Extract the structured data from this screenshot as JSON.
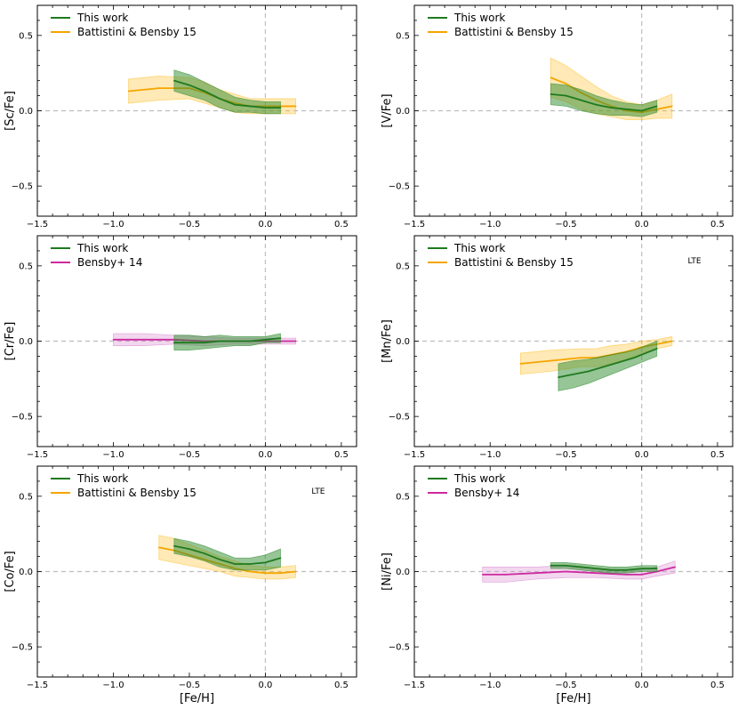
{
  "colors": {
    "this_work": "#1f7a1f",
    "this_work_fill": "#2e8b2e",
    "battistini": "#f5a500",
    "battistini_fill": "#ffc02e",
    "bensby": "#cc2a9e",
    "bensby_fill": "#d98bd0",
    "refline": "#bdbdbd"
  },
  "chart_data": [
    {
      "type": "line",
      "ylabel": "[Sc/Fe]",
      "xlabel": "",
      "xlim": [
        -1.5,
        0.6
      ],
      "ylim": [
        -0.7,
        0.7
      ],
      "xticks": [
        -1.5,
        -1.0,
        -0.5,
        0.0,
        0.5
      ],
      "xtick_labels": [
        "−1.5",
        "−1.0",
        "−0.5",
        "0.0",
        "0.5"
      ],
      "yticks": [
        -0.5,
        0.0,
        0.5
      ],
      "ytick_labels": [
        "−0.5",
        "0.0",
        "0.5"
      ],
      "legend_position": "top-left",
      "note": "",
      "series": [
        {
          "name": "This work",
          "color_key": "this_work",
          "x": [
            -0.6,
            -0.5,
            -0.4,
            -0.3,
            -0.2,
            -0.1,
            0.0,
            0.1
          ],
          "y": [
            0.2,
            0.17,
            0.13,
            0.08,
            0.04,
            0.03,
            0.02,
            0.02
          ],
          "err": [
            0.07,
            0.07,
            0.06,
            0.06,
            0.05,
            0.04,
            0.04,
            0.04
          ]
        },
        {
          "name": "Battistini & Bensby 15",
          "color_key": "battistini",
          "x": [
            -0.9,
            -0.7,
            -0.5,
            -0.4,
            -0.3,
            -0.2,
            -0.1,
            0.0,
            0.1,
            0.2
          ],
          "y": [
            0.13,
            0.15,
            0.15,
            0.12,
            0.08,
            0.05,
            0.03,
            0.03,
            0.03,
            0.03
          ],
          "err": [
            0.08,
            0.08,
            0.07,
            0.07,
            0.06,
            0.06,
            0.05,
            0.05,
            0.05,
            0.05
          ]
        }
      ]
    },
    {
      "type": "line",
      "ylabel": "[V/Fe]",
      "xlabel": "",
      "xlim": [
        -1.5,
        0.6
      ],
      "ylim": [
        -0.7,
        0.7
      ],
      "xticks": [
        -1.5,
        -1.0,
        -0.5,
        0.0,
        0.5
      ],
      "xtick_labels": [
        "−1.5",
        "−1.0",
        "−0.5",
        "0.0",
        "0.5"
      ],
      "yticks": [
        -0.5,
        0.0,
        0.5
      ],
      "ytick_labels": [
        "−0.5",
        "0.0",
        "0.5"
      ],
      "legend_position": "top-left",
      "note": "",
      "series": [
        {
          "name": "This work",
          "color_key": "this_work",
          "x": [
            -0.6,
            -0.5,
            -0.4,
            -0.3,
            -0.2,
            -0.1,
            0.0,
            0.1
          ],
          "y": [
            0.11,
            0.1,
            0.07,
            0.04,
            0.02,
            0.01,
            0.0,
            0.03
          ],
          "err": [
            0.07,
            0.07,
            0.07,
            0.06,
            0.05,
            0.04,
            0.04,
            0.04
          ]
        },
        {
          "name": "Battistini & Bensby 15",
          "color_key": "battistini",
          "x": [
            -0.6,
            -0.5,
            -0.4,
            -0.3,
            -0.2,
            -0.1,
            0.0,
            0.1,
            0.2
          ],
          "y": [
            0.22,
            0.18,
            0.12,
            0.07,
            0.03,
            0.0,
            -0.01,
            0.01,
            0.03
          ],
          "err": [
            0.13,
            0.12,
            0.11,
            0.09,
            0.07,
            0.06,
            0.05,
            0.06,
            0.08
          ]
        }
      ]
    },
    {
      "type": "line",
      "ylabel": "[Cr/Fe]",
      "xlabel": "",
      "xlim": [
        -1.5,
        0.6
      ],
      "ylim": [
        -0.7,
        0.7
      ],
      "xticks": [
        -1.5,
        -1.0,
        -0.5,
        0.0,
        0.5
      ],
      "xtick_labels": [
        "−1.5",
        "−1.0",
        "−0.5",
        "0.0",
        "0.5"
      ],
      "yticks": [
        -0.5,
        0.0,
        0.5
      ],
      "ytick_labels": [
        "−0.5",
        "0.0",
        "0.5"
      ],
      "legend_position": "top-left",
      "note": "",
      "series": [
        {
          "name": "This work",
          "color_key": "this_work",
          "x": [
            -0.6,
            -0.5,
            -0.4,
            -0.3,
            -0.2,
            -0.1,
            0.0,
            0.1
          ],
          "y": [
            -0.01,
            -0.01,
            -0.01,
            0.0,
            0.0,
            0.0,
            0.01,
            0.02
          ],
          "err": [
            0.05,
            0.05,
            0.04,
            0.04,
            0.03,
            0.03,
            0.02,
            0.03
          ]
        },
        {
          "name": "Bensby+ 14",
          "color_key": "bensby",
          "x": [
            -1.0,
            -0.8,
            -0.6,
            -0.4,
            -0.2,
            0.0,
            0.2
          ],
          "y": [
            0.01,
            0.01,
            0.01,
            0.0,
            0.0,
            0.0,
            0.0
          ],
          "err": [
            0.04,
            0.04,
            0.03,
            0.03,
            0.02,
            0.02,
            0.02
          ]
        }
      ]
    },
    {
      "type": "line",
      "ylabel": "[Mn/Fe]",
      "xlabel": "",
      "xlim": [
        -1.5,
        0.6
      ],
      "ylim": [
        -0.7,
        0.7
      ],
      "xticks": [
        -1.5,
        -1.0,
        -0.5,
        0.0,
        0.5
      ],
      "xtick_labels": [
        "−1.5",
        "−1.0",
        "−0.5",
        "0.0",
        "0.5"
      ],
      "yticks": [
        -0.5,
        0.0,
        0.5
      ],
      "ytick_labels": [
        "−0.5",
        "0.0",
        "0.5"
      ],
      "legend_position": "top-left",
      "note": "LTE",
      "series": [
        {
          "name": "This work",
          "color_key": "this_work",
          "x": [
            -0.55,
            -0.45,
            -0.35,
            -0.25,
            -0.15,
            -0.05,
            0.05,
            0.1
          ],
          "y": [
            -0.24,
            -0.22,
            -0.2,
            -0.17,
            -0.14,
            -0.11,
            -0.07,
            -0.05
          ],
          "err": [
            0.09,
            0.09,
            0.08,
            0.07,
            0.06,
            0.05,
            0.05,
            0.05
          ]
        },
        {
          "name": "Battistini & Bensby 15",
          "color_key": "battistini",
          "x": [
            -0.8,
            -0.6,
            -0.4,
            -0.3,
            -0.2,
            -0.1,
            0.0,
            0.1,
            0.2
          ],
          "y": [
            -0.15,
            -0.13,
            -0.11,
            -0.11,
            -0.09,
            -0.07,
            -0.04,
            -0.02,
            0.0
          ],
          "err": [
            0.07,
            0.07,
            0.06,
            0.06,
            0.06,
            0.05,
            0.04,
            0.03,
            0.03
          ]
        }
      ]
    },
    {
      "type": "line",
      "ylabel": "[Co/Fe]",
      "xlabel": "[Fe/H]",
      "xlim": [
        -1.5,
        0.6
      ],
      "ylim": [
        -0.7,
        0.7
      ],
      "xticks": [
        -1.5,
        -1.0,
        -0.5,
        0.0,
        0.5
      ],
      "xtick_labels": [
        "−1.5",
        "−1.0",
        "−0.5",
        "0.0",
        "0.5"
      ],
      "yticks": [
        -0.5,
        0.0,
        0.5
      ],
      "ytick_labels": [
        "−0.5",
        "0.0",
        "0.5"
      ],
      "legend_position": "top-left",
      "note": "LTE",
      "series": [
        {
          "name": "This work",
          "color_key": "this_work",
          "x": [
            -0.6,
            -0.5,
            -0.4,
            -0.3,
            -0.2,
            -0.1,
            0.0,
            0.1
          ],
          "y": [
            0.17,
            0.15,
            0.12,
            0.08,
            0.05,
            0.05,
            0.06,
            0.09
          ],
          "err": [
            0.05,
            0.05,
            0.05,
            0.05,
            0.04,
            0.04,
            0.05,
            0.06
          ]
        },
        {
          "name": "Battistini & Bensby 15",
          "color_key": "battistini",
          "x": [
            -0.7,
            -0.6,
            -0.5,
            -0.4,
            -0.3,
            -0.2,
            -0.1,
            0.0,
            0.1,
            0.2
          ],
          "y": [
            0.16,
            0.14,
            0.11,
            0.08,
            0.05,
            0.02,
            0.0,
            -0.01,
            -0.01,
            0.0
          ],
          "err": [
            0.08,
            0.08,
            0.07,
            0.06,
            0.05,
            0.05,
            0.04,
            0.04,
            0.04,
            0.04
          ]
        }
      ]
    },
    {
      "type": "line",
      "ylabel": "[Ni/Fe]",
      "xlabel": "[Fe/H]",
      "xlim": [
        -1.5,
        0.6
      ],
      "ylim": [
        -0.7,
        0.7
      ],
      "xticks": [
        -1.5,
        -1.0,
        -0.5,
        0.0,
        0.5
      ],
      "xtick_labels": [
        "−1.5",
        "−1.0",
        "−0.5",
        "0.0",
        "0.5"
      ],
      "yticks": [
        -0.5,
        0.0,
        0.5
      ],
      "ytick_labels": [
        "−0.5",
        "0.0",
        "0.5"
      ],
      "legend_position": "top-left",
      "note": "",
      "series": [
        {
          "name": "This work",
          "color_key": "this_work",
          "x": [
            -0.6,
            -0.5,
            -0.4,
            -0.3,
            -0.2,
            -0.1,
            0.0,
            0.1
          ],
          "y": [
            0.04,
            0.04,
            0.03,
            0.02,
            0.01,
            0.01,
            0.02,
            0.02
          ],
          "err": [
            0.02,
            0.02,
            0.02,
            0.02,
            0.02,
            0.02,
            0.02,
            0.02
          ]
        },
        {
          "name": "Bensby+ 14",
          "color_key": "bensby",
          "x": [
            -1.05,
            -0.9,
            -0.7,
            -0.5,
            -0.3,
            -0.1,
            0.0,
            0.1,
            0.22
          ],
          "y": [
            -0.02,
            -0.02,
            -0.01,
            0.0,
            -0.01,
            -0.02,
            -0.02,
            0.0,
            0.03
          ],
          "err": [
            0.05,
            0.05,
            0.04,
            0.04,
            0.03,
            0.03,
            0.03,
            0.03,
            0.04
          ]
        }
      ]
    }
  ]
}
